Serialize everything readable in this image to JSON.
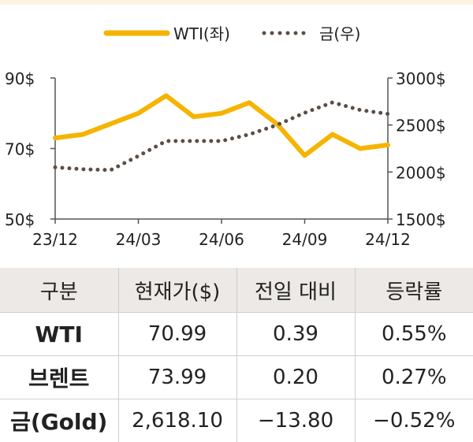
{
  "chart_data": {
    "type": "line",
    "x_tick_labels": [
      "23/12",
      "24/03",
      "24/06",
      "24/09",
      "24/12"
    ],
    "y_left": {
      "ticks": [
        "90$",
        "70$",
        "50$"
      ],
      "range": [
        50,
        90
      ]
    },
    "y_right": {
      "ticks": [
        "3000$",
        "2500$",
        "2000$",
        "1500$"
      ],
      "range": [
        1500,
        3000
      ]
    },
    "legend_position": "top",
    "series": [
      {
        "name": "WTI(좌)",
        "axis": "left",
        "style": "solid",
        "color": "#f5b400",
        "x": [
          "23/12",
          "24/01",
          "24/02",
          "24/03",
          "24/04",
          "24/05",
          "24/06",
          "24/07",
          "24/08",
          "24/09",
          "24/10",
          "24/11",
          "24/12"
        ],
        "values": [
          73,
          74,
          77,
          80,
          85,
          79,
          80,
          83,
          77,
          68,
          74,
          70,
          71
        ]
      },
      {
        "name": "금(우)",
        "axis": "right",
        "style": "dotted",
        "color": "#5a4e46",
        "x": [
          "23/12",
          "24/01",
          "24/02",
          "24/03",
          "24/04",
          "24/05",
          "24/06",
          "24/07",
          "24/08",
          "24/09",
          "24/10",
          "24/11",
          "24/12"
        ],
        "values": [
          2050,
          2030,
          2020,
          2170,
          2330,
          2330,
          2330,
          2400,
          2500,
          2630,
          2740,
          2660,
          2618
        ]
      }
    ]
  },
  "table": {
    "headers": [
      "구분",
      "현재가($)",
      "전일 대비",
      "등락률"
    ],
    "rows": [
      [
        "WTI",
        "70.99",
        "0.39",
        "0.55%"
      ],
      [
        "브렌트",
        "73.99",
        "0.20",
        "0.27%"
      ],
      [
        "금(Gold)",
        "2,618.10",
        "−13.80",
        "−0.52%"
      ]
    ]
  }
}
